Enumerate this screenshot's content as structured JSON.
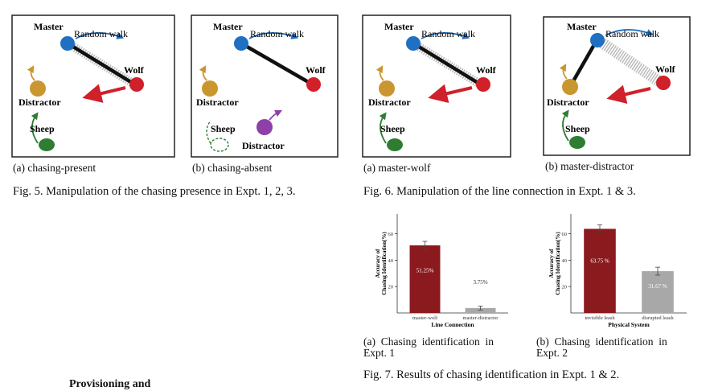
{
  "fig5": {
    "caption": "Fig. 5. Manipulation of the chasing presence in Expt. 1, 2, 3.",
    "panels": [
      {
        "caption": "(a) chasing-present",
        "labels": {
          "master": "Master",
          "random_walk": "Random walk",
          "wolf": "Wolf",
          "distractor": "Distractor",
          "sheep": "Sheep"
        }
      },
      {
        "caption": "(b) chasing-absent",
        "labels": {
          "master": "Master",
          "random_walk": "Random walk",
          "wolf": "Wolf",
          "distractor": "Distractor",
          "sheep": "Sheep",
          "distractor2": "Distractor"
        }
      }
    ]
  },
  "fig6": {
    "caption": "Fig. 6. Manipulation of the line connection in Expt. 1 & 3.",
    "panels": [
      {
        "caption": "(a) master-wolf",
        "labels": {
          "master": "Master",
          "random_walk": "Random walk",
          "wolf": "Wolf",
          "distractor": "Distractor",
          "sheep": "Sheep"
        }
      },
      {
        "caption": "(b) master-distractor",
        "labels": {
          "master": "Master",
          "random_walk": "Random walk",
          "wolf": "Wolf",
          "distractor": "Distractor",
          "sheep": "Sheep"
        }
      }
    ]
  },
  "fig7": {
    "caption": "Fig. 7. Results of chasing identification in Expt. 1 & 2.",
    "subcaptions": [
      {
        "line1": "(a)  Chasing  identification  in",
        "line2": "Expt. 1"
      },
      {
        "line1": "(b)  Chasing  identification  in",
        "line2": "Expt. 2"
      }
    ]
  },
  "chart_data": [
    {
      "type": "bar",
      "xlabel": "Line Connection",
      "ylabel_line1": "Accuracy of",
      "ylabel_line2": "Chasing Identification(%)",
      "categories": [
        "master-wolf",
        "master-distractor"
      ],
      "values": [
        51.25,
        3.75
      ],
      "value_labels": [
        "51.25%",
        "3.75%"
      ],
      "errors": [
        3.0,
        1.5
      ],
      "colors": [
        "#8b1a1f",
        "#a8a8a8"
      ],
      "yticks": [
        20,
        40,
        60
      ],
      "ylim": [
        0,
        75
      ]
    },
    {
      "type": "bar",
      "xlabel": "Physical System",
      "ylabel_line1": "Accuracy of",
      "ylabel_line2": "Chasing Identification(%)",
      "categories": [
        "invisible leash",
        "disrupted leash"
      ],
      "values": [
        63.75,
        31.67
      ],
      "value_labels": [
        "63.75 %",
        "31.67 %"
      ],
      "errors": [
        3.0,
        3.0
      ],
      "colors": [
        "#8b1a1f",
        "#a8a8a8"
      ],
      "yticks": [
        20,
        40,
        60
      ],
      "ylim": [
        0,
        75
      ]
    }
  ],
  "cutoff_text": "Provisioning and",
  "colors": {
    "master": "#1f6fc3",
    "wolf": "#d0202a",
    "distractor": "#c9962f",
    "sheep": "#2e7d32",
    "purple": "#8e3fa8",
    "arrow_red": "#d0202a",
    "bar_red": "#8b1a1f",
    "bar_gray": "#a8a8a8"
  }
}
